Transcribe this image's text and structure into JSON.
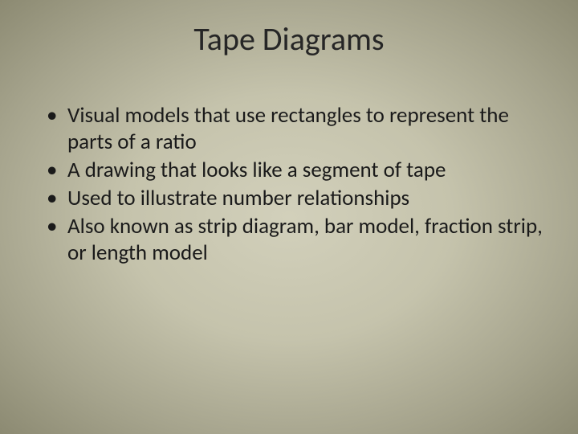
{
  "slide": {
    "title": "Tape Diagrams",
    "bullets": [
      "Visual models that use rectangles to represent the parts of a ratio",
      "A drawing that looks like a segment of tape",
      "Used to illustrate number relationships",
      "Also known as strip diagram, bar model, fraction strip, or length model"
    ],
    "title_fontsize": 40,
    "body_fontsize": 27,
    "background_gradient": {
      "center": "#d2d0bb",
      "mid": "#c5c3ac",
      "outer": "#a5a38c",
      "edge": "#8c8a72"
    },
    "text_color": "#1a1a1a"
  }
}
